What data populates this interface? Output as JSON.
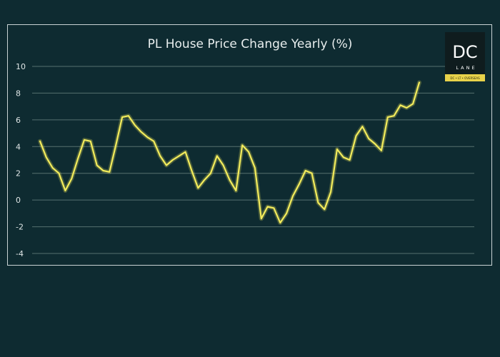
{
  "chart_data": {
    "type": "line",
    "title": "PL House Price Change Yearly (%)",
    "xlabel": "",
    "ylabel": "",
    "ylim": [
      -4,
      10
    ],
    "yticks": [
      "10",
      "8",
      "6",
      "4",
      "2",
      "0",
      "-2",
      "-4"
    ],
    "grid": true,
    "line_color": "#f3ec5c",
    "series": [
      {
        "values": [
          4.4,
          3.2,
          2.4,
          2.0,
          0.7,
          1.6,
          3.1,
          4.5,
          4.4,
          2.6,
          2.2,
          2.1,
          4.1,
          6.2,
          6.3,
          5.6,
          5.1,
          4.7,
          4.4,
          3.3,
          2.6,
          3.0,
          3.3,
          3.6,
          2.2,
          0.9,
          1.5,
          2.0,
          3.3,
          2.6,
          1.5,
          0.7,
          4.1,
          3.6,
          2.4,
          -1.4,
          -0.5,
          -0.6,
          -1.7,
          -1.0,
          0.3,
          1.2,
          2.2,
          2.0,
          -0.2,
          -0.7,
          0.6,
          3.8,
          3.2,
          3.0,
          4.8,
          5.5,
          4.6,
          4.2,
          3.7,
          6.2,
          6.3,
          7.1,
          6.9,
          7.2,
          8.8
        ]
      }
    ]
  },
  "logo": {
    "main": "DC",
    "sub": "LANE",
    "tagline": "DC • LT • OVERSEAS"
  },
  "colors": {
    "background": "#0e2b31",
    "line": "#f3ec5c",
    "logo_tag": "#e8d24a"
  }
}
